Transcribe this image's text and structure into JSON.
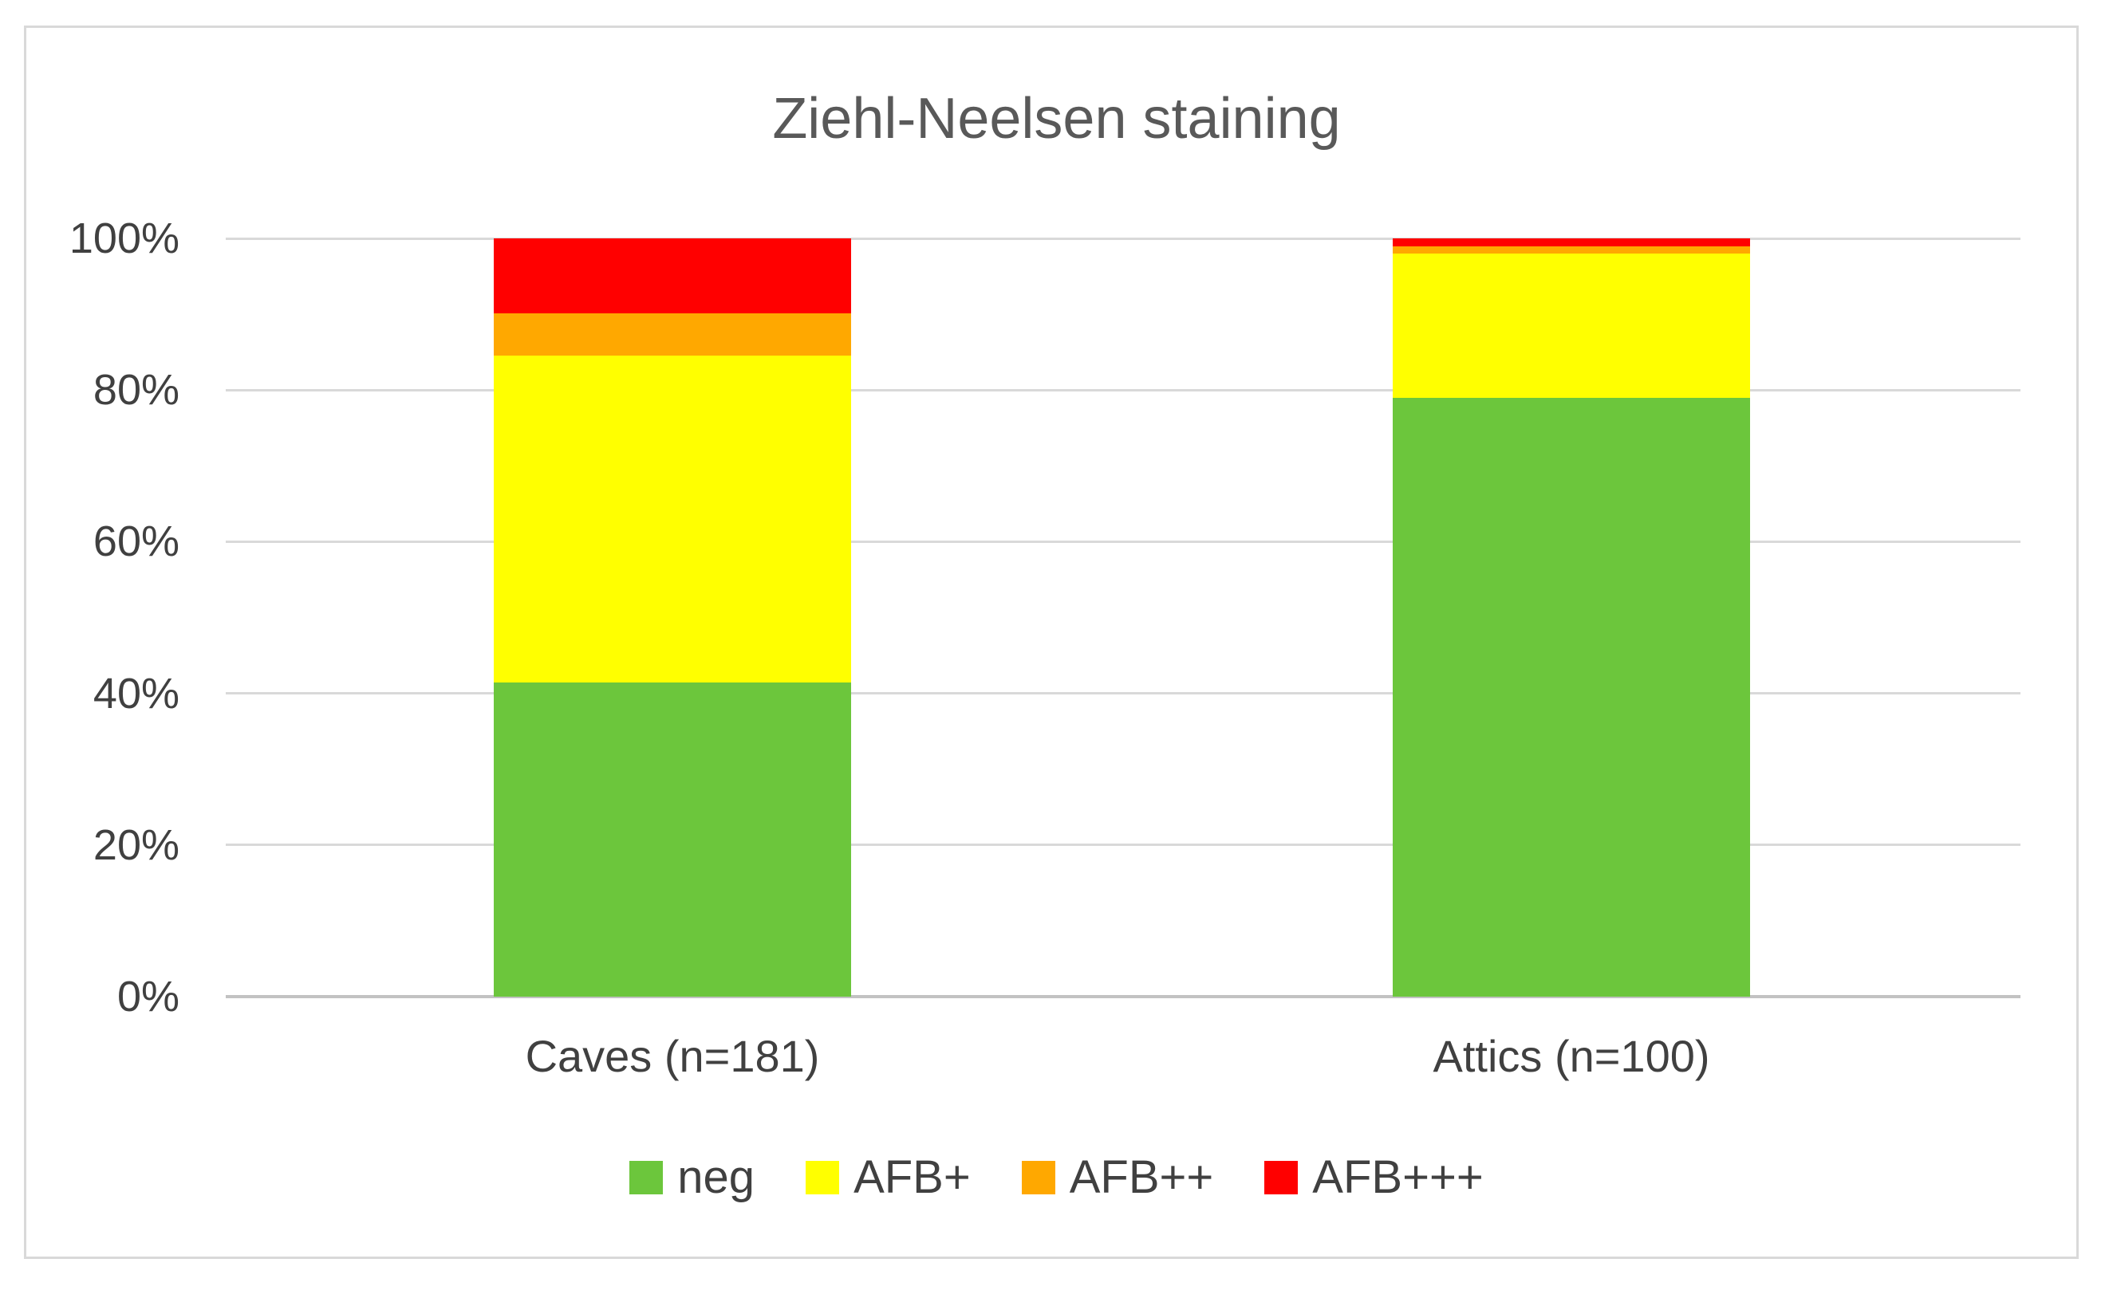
{
  "chart_data": {
    "type": "bar",
    "subtype": "stacked-100-percent-column",
    "title": "Ziehl-Neelsen staining",
    "categories": [
      "Caves (n=181)",
      "Attics (n=100)"
    ],
    "series": [
      {
        "name": "neg",
        "color": "#6cc63c",
        "values": [
          41.4,
          79.0
        ]
      },
      {
        "name": "AFB+",
        "color": "#ffff00",
        "values": [
          43.1,
          19.0
        ]
      },
      {
        "name": "AFB++",
        "color": "#ffa800",
        "values": [
          5.6,
          1.0
        ]
      },
      {
        "name": "AFB+++",
        "color": "#ff0000",
        "values": [
          9.9,
          1.0
        ]
      }
    ],
    "xlabel": "",
    "ylabel": "",
    "ylim": [
      0,
      100
    ],
    "ytick_step": 20,
    "yticks": [
      "0%",
      "20%",
      "40%",
      "60%",
      "80%",
      "100%"
    ],
    "grid": true,
    "legend_position": "bottom"
  },
  "style": {
    "title_color": "#595959",
    "axis_label_color": "#404040",
    "gridline_color": "#d9d9d9",
    "baseline_color": "#c2c2c2",
    "frame_border_color": "#d9d9d9",
    "background_color": "#ffffff"
  }
}
